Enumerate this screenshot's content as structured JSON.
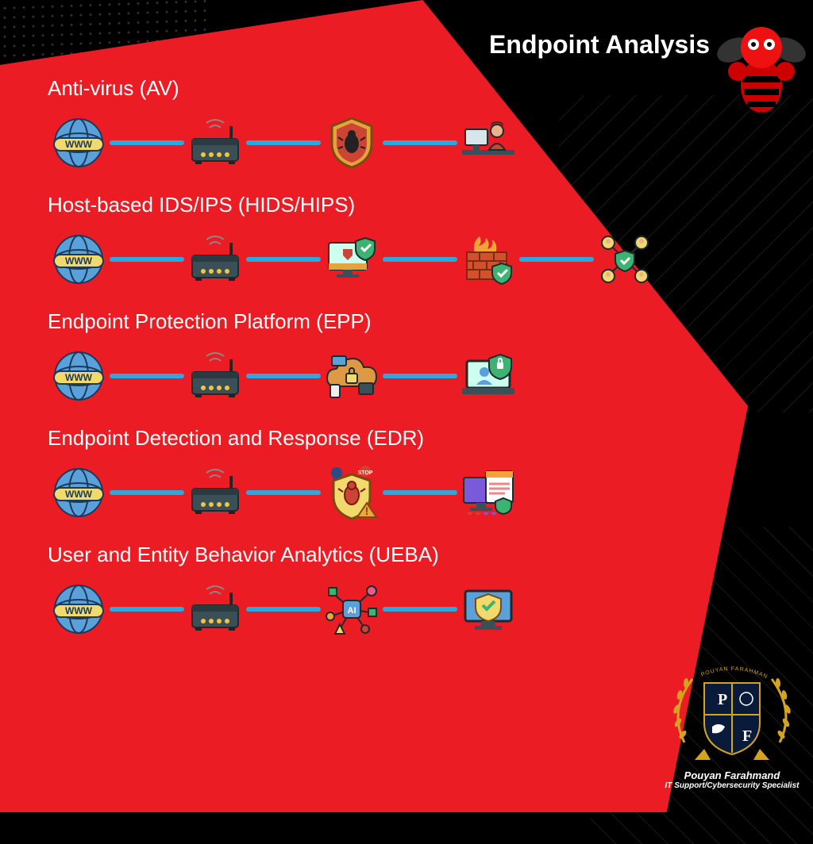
{
  "title": "Endpoint Analysis",
  "author": {
    "name": "Pouyan Farahmand",
    "role": "IT Support/Cybersecurity Specialist",
    "badge_initials": [
      "P",
      "F"
    ]
  },
  "colors": {
    "background": "#000000",
    "red_panel": "#ec1c24",
    "connector": "#2aa9e0",
    "text": "#ffffff",
    "gold": "#d4a420",
    "router_body": "#3a4f56",
    "router_led": "#f2c541",
    "www_band": "#f2d96b",
    "globe_blue": "#5aa0db",
    "shield_orange": "#e8a23a",
    "shield_green": "#3cb371",
    "firewall_brick": "#d2512a"
  },
  "row_label_fontsize": 26,
  "title_fontsize": 32,
  "icon_size": 78,
  "connector_width": 94,
  "connector_height": 6,
  "rows": [
    {
      "label": "Anti-virus (AV)",
      "icons": [
        "globe-www",
        "router",
        "shield-bug",
        "user-desk"
      ]
    },
    {
      "label": "Host-based IDS/IPS (HIDS/HIPS)",
      "icons": [
        "globe-www",
        "router",
        "monitor-shield",
        "firewall",
        "users-shield"
      ]
    },
    {
      "label": "Endpoint Protection Platform (EPP)",
      "icons": [
        "globe-www",
        "router",
        "cloud-lock-stack",
        "laptop-user-shield"
      ]
    },
    {
      "label": "Endpoint Detection and Response (EDR)",
      "icons": [
        "globe-www",
        "router",
        "shield-bug-alert",
        "monitor-report"
      ]
    },
    {
      "label": "User and Entity Behavior Analytics (UEBA)",
      "icons": [
        "globe-www",
        "router",
        "ai-nodes",
        "monitor-shield-check"
      ]
    }
  ]
}
